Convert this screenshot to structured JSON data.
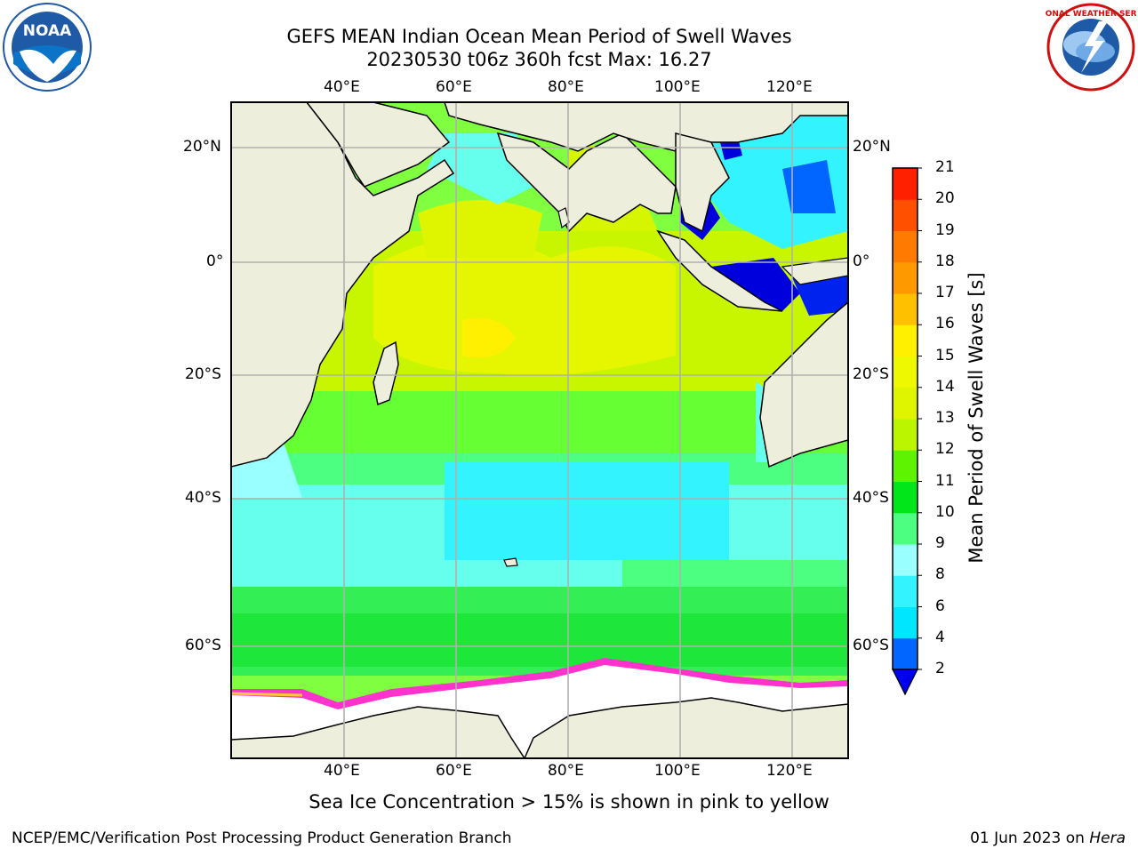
{
  "header": {
    "title_line1": "GEFS MEAN Indian Ocean Mean Period of Swell Waves",
    "title_line2": "20230530 t06z 360h fcst   Max: 16.27"
  },
  "logos": {
    "noaa_text": "NOAA",
    "nws_text": "NATIONAL WEATHER SERVICE"
  },
  "map": {
    "lon_ticks": [
      "40°E",
      "60°E",
      "80°E",
      "100°E",
      "120°E"
    ],
    "lat_ticks_left": [
      "20°N",
      "0°",
      "20°S",
      "40°S",
      "60°S"
    ],
    "lat_ticks_right": [
      "20°N",
      "0°",
      "20°S",
      "40°S",
      "60°S"
    ],
    "colors": {
      "land": "#eeeedd",
      "ice": "#ffffff",
      "grid": "#b0b0b0"
    }
  },
  "colorbar": {
    "label": "Mean Period of Swell Waves [s]",
    "ticks": [
      "2",
      "4",
      "6",
      "8",
      "9",
      "10",
      "11",
      "12",
      "13",
      "14",
      "15",
      "16",
      "17",
      "18",
      "19",
      "20",
      "21"
    ],
    "colors": [
      "#0066ff",
      "#00e6ff",
      "#33f3ff",
      "#99ffff",
      "#4dff80",
      "#00e61a",
      "#5ef300",
      "#bbf500",
      "#dff500",
      "#eef800",
      "#fff000",
      "#ffc000",
      "#ff9900",
      "#ff7a00",
      "#ff5000",
      "#ff2000"
    ],
    "under_color": "#0000ee"
  },
  "notes": {
    "sea_ice": "Sea Ice Concentration > 15% is shown in pink to yellow"
  },
  "footer": {
    "left": "NCEP/EMC/Verification Post Processing Product Generation Branch",
    "right_date": "01 Jun 2023 on ",
    "right_host": "Hera"
  }
}
